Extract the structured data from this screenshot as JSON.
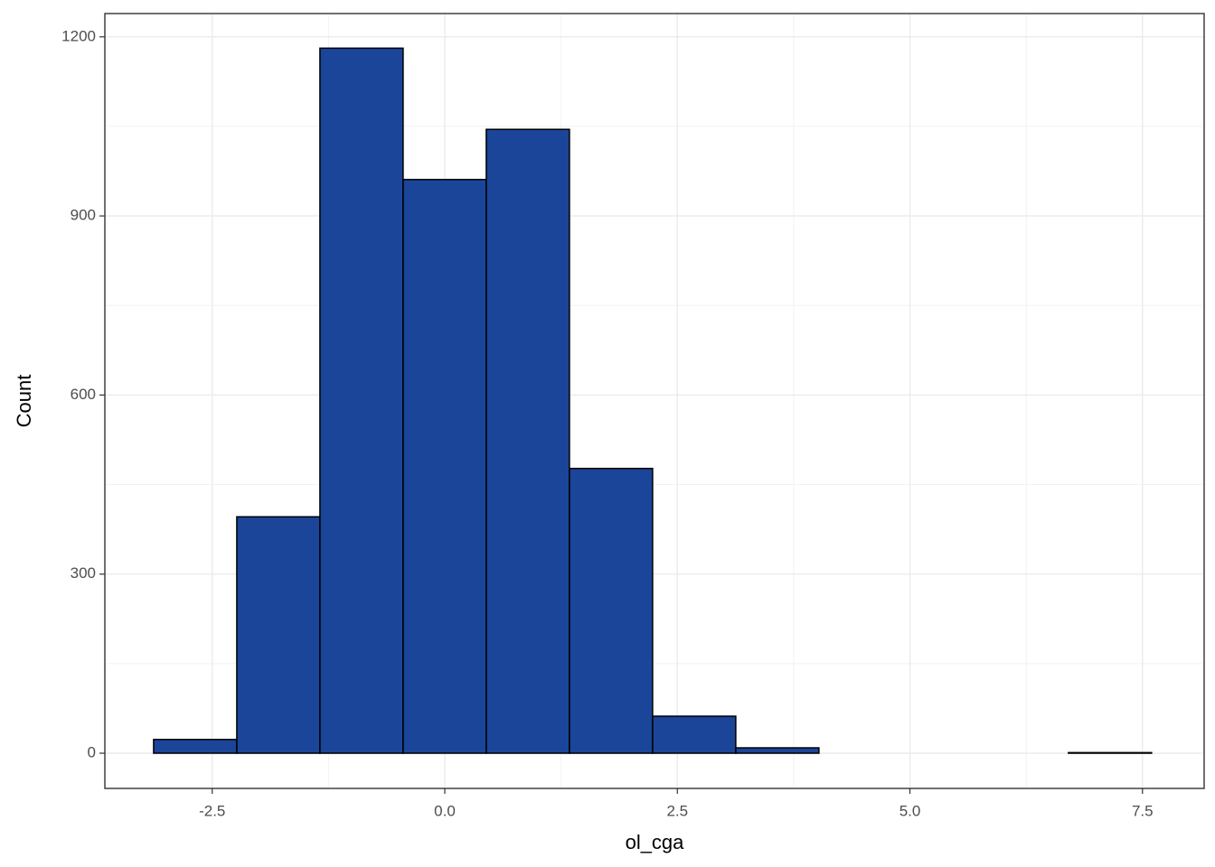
{
  "chart_data": {
    "type": "histogram",
    "x_label": "ol_cga",
    "y_label": "Count",
    "bins": [
      -3.13,
      -2.236,
      -1.342,
      -0.448,
      0.446,
      1.34,
      2.234,
      3.128,
      4.022,
      4.916,
      5.81,
      6.704,
      7.598
    ],
    "values": [
      23,
      396,
      1181,
      961,
      1045,
      477,
      62,
      9,
      0,
      0,
      0,
      1
    ],
    "color": "#1a4599",
    "edge_color": "#000000",
    "xlim": [
      -3.654,
      8.163
    ],
    "ylim": [
      -59,
      1239
    ],
    "xticks": [
      {
        "value": -2.5,
        "label": "-2.5"
      },
      {
        "value": 0,
        "label": "0.0"
      },
      {
        "value": 2.5,
        "label": "2.5"
      },
      {
        "value": 5,
        "label": "5.0"
      },
      {
        "value": 7.5,
        "label": "7.5"
      }
    ],
    "yticks": [
      0,
      300,
      600,
      900,
      1200
    ],
    "grid": true
  }
}
